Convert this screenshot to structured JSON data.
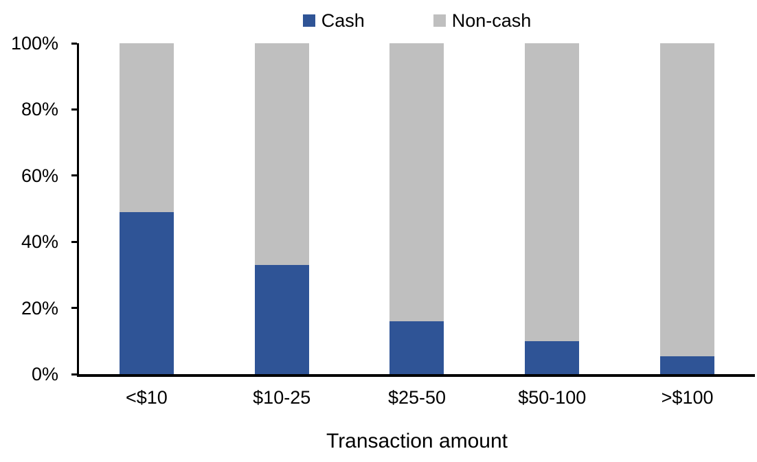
{
  "page": {
    "background_color": "#FFFFFF",
    "text_color": "#000000",
    "axis_color": "#000000"
  },
  "legend": {
    "items": [
      {
        "label": "Cash",
        "color": "#2F5496",
        "swatch": "square"
      },
      {
        "label": "Non-cash",
        "color": "#BFBFBF",
        "swatch": "square"
      }
    ]
  },
  "chart_data": {
    "type": "bar",
    "subtype": "stacked-100-percent-column",
    "title": "",
    "xlabel": "Transaction amount",
    "ylabel": "",
    "categories": [
      "<$10",
      "$10-25",
      "$25-50",
      "$50-100",
      ">$100"
    ],
    "series": [
      {
        "name": "Cash",
        "color": "#2F5496",
        "values": [
          49,
          33,
          16,
          10,
          5.5
        ]
      },
      {
        "name": "Non-cash",
        "color": "#BFBFBF",
        "values": [
          51,
          67,
          84,
          90,
          94.5
        ]
      }
    ],
    "ylim": [
      0,
      100
    ],
    "ytick_interval": 20,
    "yticks": [
      "0%",
      "20%",
      "40%",
      "60%",
      "80%",
      "100%"
    ],
    "grid": false,
    "legend_position": "top-center"
  }
}
